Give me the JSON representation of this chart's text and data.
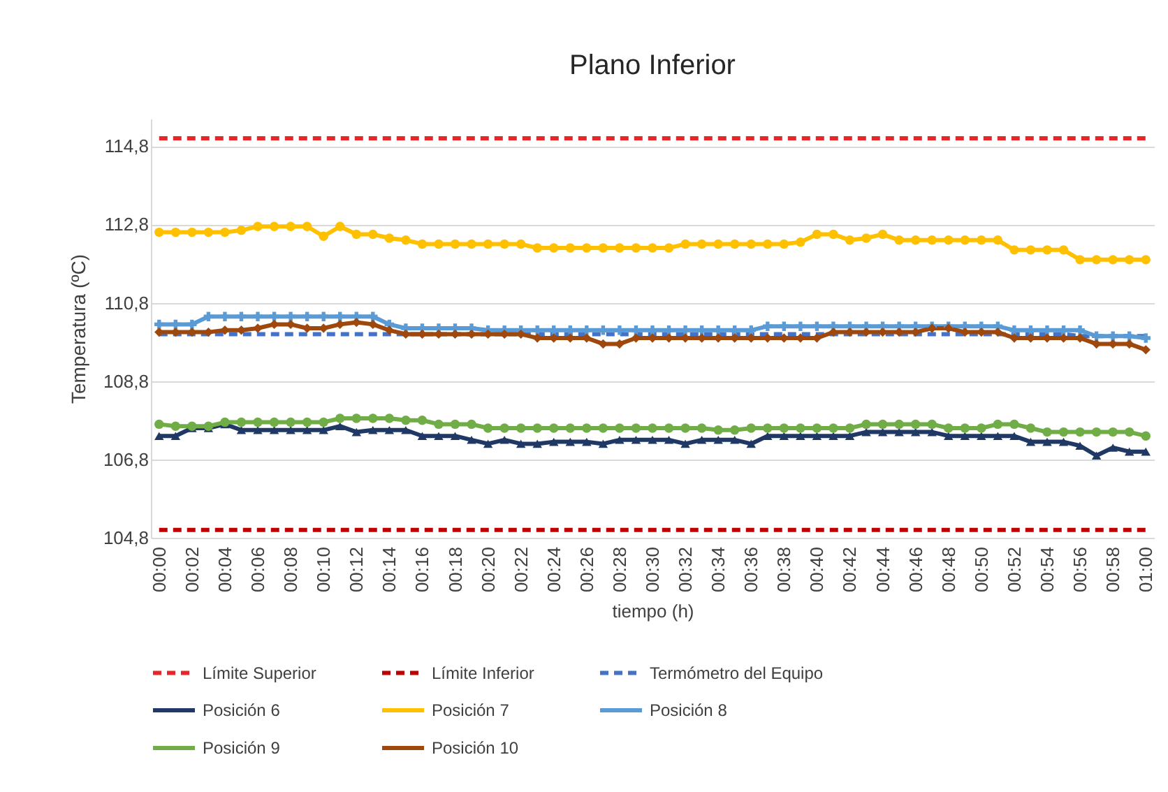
{
  "chart_data": {
    "type": "line",
    "title": "Plano Inferior",
    "xlabel": "tiempo (h)",
    "ylabel": "Temperatura (ºC)",
    "categories": [
      "00:00",
      null,
      "00:02",
      null,
      "00:04",
      null,
      "00:06",
      null,
      "00:08",
      null,
      "00:10",
      null,
      "00:12",
      null,
      "00:14",
      null,
      "00:16",
      null,
      "00:18",
      null,
      "00:20",
      null,
      "00:22",
      null,
      "00:24",
      null,
      "00:26",
      null,
      "00:28",
      null,
      "00:30",
      null,
      "00:32",
      null,
      "00:34",
      null,
      "00:36",
      null,
      "00:38",
      null,
      "00:40",
      null,
      "00:42",
      null,
      "00:44",
      null,
      "00:46",
      null,
      "00:48",
      null,
      "00:50",
      null,
      "00:52",
      null,
      "00:54",
      null,
      "00:56",
      null,
      "00:58",
      null,
      "01:00"
    ],
    "ylim": [
      104.8,
      115.5
    ],
    "yticks": [
      {
        "value": 104.8,
        "label": "104,8"
      },
      {
        "value": 106.8,
        "label": "106,8"
      },
      {
        "value": 108.8,
        "label": "108,8"
      },
      {
        "value": 110.8,
        "label": "110,8"
      },
      {
        "value": 112.8,
        "label": "112,8"
      },
      {
        "value": 114.8,
        "label": "114,8"
      }
    ],
    "grid": "y",
    "legend": "bottom",
    "series": [
      {
        "name": "Límite Superior",
        "color": "#e8262a",
        "line_style": "dashed",
        "marker": "none",
        "values": [
          115,
          115,
          115,
          115,
          115,
          115,
          115,
          115,
          115,
          115,
          115,
          115,
          115,
          115,
          115,
          115,
          115,
          115,
          115,
          115,
          115,
          115,
          115,
          115,
          115,
          115,
          115,
          115,
          115,
          115,
          115,
          115,
          115,
          115,
          115,
          115,
          115,
          115,
          115,
          115,
          115,
          115,
          115,
          115,
          115,
          115,
          115,
          115,
          115,
          115,
          115,
          115,
          115,
          115,
          115,
          115,
          115,
          115,
          115,
          115,
          115
        ]
      },
      {
        "name": "Límite Inferior",
        "color": "#c00000",
        "line_style": "dashed",
        "marker": "none",
        "values": [
          105,
          105,
          105,
          105,
          105,
          105,
          105,
          105,
          105,
          105,
          105,
          105,
          105,
          105,
          105,
          105,
          105,
          105,
          105,
          105,
          105,
          105,
          105,
          105,
          105,
          105,
          105,
          105,
          105,
          105,
          105,
          105,
          105,
          105,
          105,
          105,
          105,
          105,
          105,
          105,
          105,
          105,
          105,
          105,
          105,
          105,
          105,
          105,
          105,
          105,
          105,
          105,
          105,
          105,
          105,
          105,
          105,
          105,
          105,
          105,
          105
        ]
      },
      {
        "name": "Termómetro del Equipo",
        "color": "#4472c4",
        "line_style": "dashed",
        "marker": "none",
        "values": [
          110,
          110,
          110,
          110,
          110,
          110,
          110,
          110,
          110,
          110,
          110,
          110,
          110,
          110,
          110,
          110,
          110,
          110,
          110,
          110,
          110,
          110,
          110,
          110,
          110,
          110,
          110,
          110,
          110,
          110,
          110,
          110,
          110,
          110,
          110,
          110,
          110,
          110,
          110,
          110,
          110,
          110,
          110,
          110,
          110,
          110,
          110,
          110,
          110,
          110,
          110,
          110,
          110,
          110,
          110,
          110,
          109.95,
          109.95,
          109.95,
          109.95,
          109.95
        ]
      },
      {
        "name": "Posición 6",
        "color": "#203864",
        "line_style": "solid",
        "marker": "triangle",
        "values": [
          107.4,
          107.4,
          107.6,
          107.6,
          107.7,
          107.55,
          107.55,
          107.55,
          107.55,
          107.55,
          107.55,
          107.65,
          107.5,
          107.55,
          107.55,
          107.55,
          107.4,
          107.4,
          107.4,
          107.3,
          107.2,
          107.3,
          107.2,
          107.2,
          107.25,
          107.25,
          107.25,
          107.2,
          107.3,
          107.3,
          107.3,
          107.3,
          107.2,
          107.3,
          107.3,
          107.3,
          107.2,
          107.4,
          107.4,
          107.4,
          107.4,
          107.4,
          107.4,
          107.5,
          107.5,
          107.5,
          107.5,
          107.5,
          107.4,
          107.4,
          107.4,
          107.4,
          107.4,
          107.25,
          107.25,
          107.25,
          107.15,
          106.9,
          107.1,
          107,
          107
        ]
      },
      {
        "name": "Posición 7",
        "color": "#ffc000",
        "line_style": "solid",
        "marker": "circle",
        "values": [
          112.6,
          112.6,
          112.6,
          112.6,
          112.6,
          112.65,
          112.75,
          112.75,
          112.75,
          112.75,
          112.5,
          112.75,
          112.55,
          112.55,
          112.45,
          112.4,
          112.3,
          112.3,
          112.3,
          112.3,
          112.3,
          112.3,
          112.3,
          112.2,
          112.2,
          112.2,
          112.2,
          112.2,
          112.2,
          112.2,
          112.2,
          112.2,
          112.3,
          112.3,
          112.3,
          112.3,
          112.3,
          112.3,
          112.3,
          112.35,
          112.55,
          112.55,
          112.4,
          112.45,
          112.55,
          112.4,
          112.4,
          112.4,
          112.4,
          112.4,
          112.4,
          112.4,
          112.15,
          112.15,
          112.15,
          112.15,
          111.9,
          111.9,
          111.9,
          111.9,
          111.9
        ]
      },
      {
        "name": "Posición 8",
        "color": "#5b9bd5",
        "line_style": "solid",
        "marker": "cross",
        "values": [
          110.25,
          110.25,
          110.25,
          110.45,
          110.45,
          110.45,
          110.45,
          110.45,
          110.45,
          110.45,
          110.45,
          110.45,
          110.45,
          110.45,
          110.25,
          110.15,
          110.15,
          110.15,
          110.15,
          110.15,
          110.1,
          110.1,
          110.1,
          110.1,
          110.1,
          110.1,
          110.1,
          110.1,
          110.1,
          110.1,
          110.1,
          110.1,
          110.1,
          110.1,
          110.1,
          110.1,
          110.1,
          110.2,
          110.2,
          110.2,
          110.2,
          110.2,
          110.2,
          110.2,
          110.2,
          110.2,
          110.2,
          110.2,
          110.2,
          110.2,
          110.2,
          110.2,
          110.1,
          110.1,
          110.1,
          110.1,
          110.1,
          109.95,
          109.95,
          109.95,
          109.9
        ]
      },
      {
        "name": "Posición 9",
        "color": "#70ad47",
        "line_style": "solid",
        "marker": "circle",
        "values": [
          107.7,
          107.65,
          107.65,
          107.65,
          107.75,
          107.75,
          107.75,
          107.75,
          107.75,
          107.75,
          107.75,
          107.85,
          107.85,
          107.85,
          107.85,
          107.8,
          107.8,
          107.7,
          107.7,
          107.7,
          107.6,
          107.6,
          107.6,
          107.6,
          107.6,
          107.6,
          107.6,
          107.6,
          107.6,
          107.6,
          107.6,
          107.6,
          107.6,
          107.6,
          107.55,
          107.55,
          107.6,
          107.6,
          107.6,
          107.6,
          107.6,
          107.6,
          107.6,
          107.7,
          107.7,
          107.7,
          107.7,
          107.7,
          107.6,
          107.6,
          107.6,
          107.7,
          107.7,
          107.6,
          107.5,
          107.5,
          107.5,
          107.5,
          107.5,
          107.5,
          107.4
        ]
      },
      {
        "name": "Posición 10",
        "color": "#9e480e",
        "line_style": "solid",
        "marker": "diamond",
        "values": [
          110.05,
          110.05,
          110.05,
          110.05,
          110.1,
          110.1,
          110.15,
          110.25,
          110.25,
          110.15,
          110.15,
          110.25,
          110.3,
          110.25,
          110.1,
          110,
          110,
          110,
          110,
          110,
          110,
          110,
          110,
          109.9,
          109.9,
          109.9,
          109.9,
          109.75,
          109.75,
          109.9,
          109.9,
          109.9,
          109.9,
          109.9,
          109.9,
          109.9,
          109.9,
          109.9,
          109.9,
          109.9,
          109.9,
          110.05,
          110.05,
          110.05,
          110.05,
          110.05,
          110.05,
          110.15,
          110.15,
          110.05,
          110.05,
          110.05,
          109.9,
          109.9,
          109.9,
          109.9,
          109.9,
          109.75,
          109.75,
          109.75,
          109.6
        ]
      }
    ]
  }
}
